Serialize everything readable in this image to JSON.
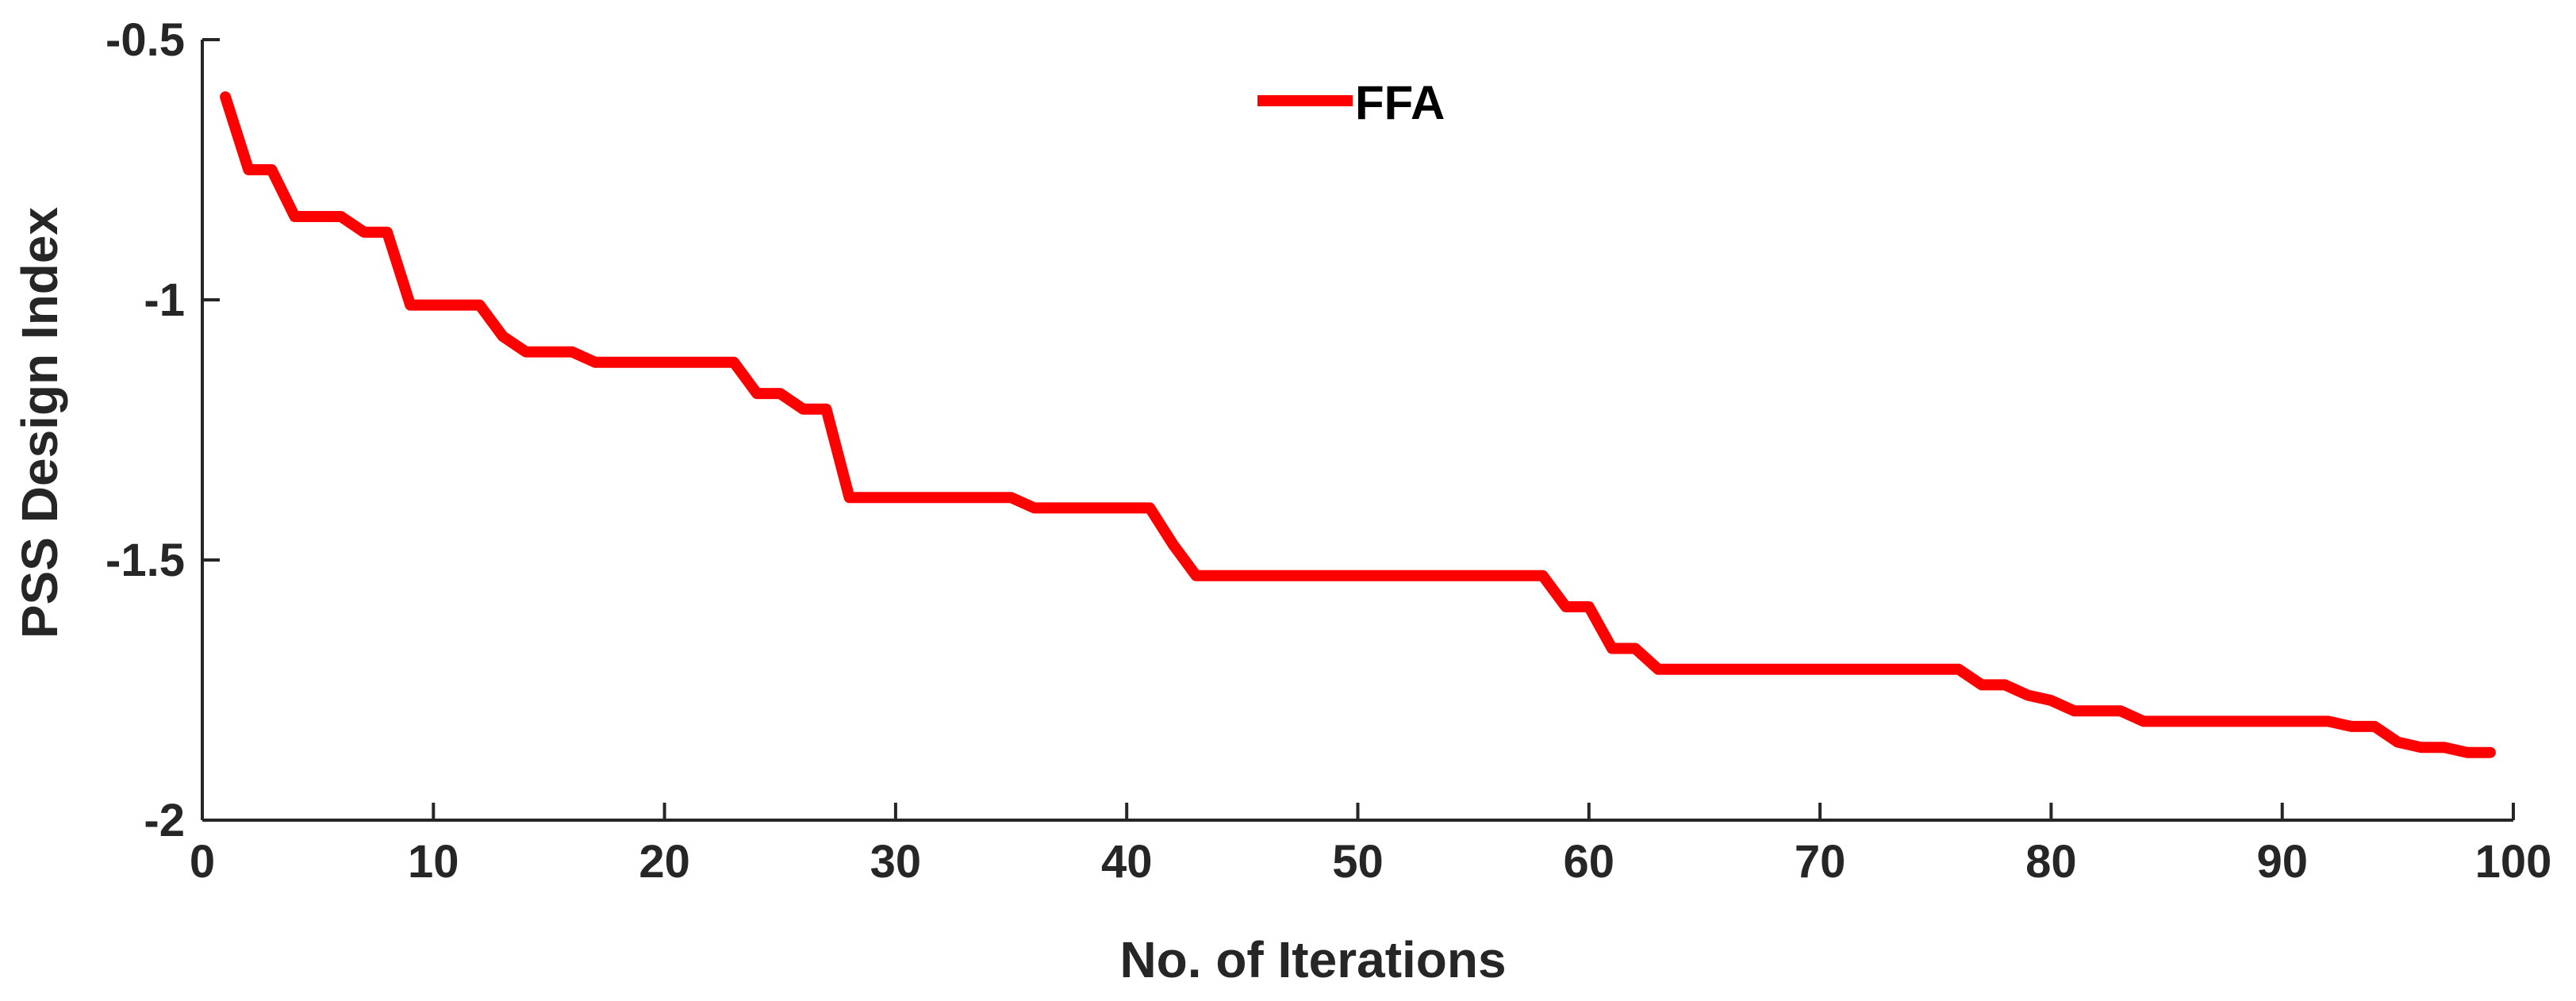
{
  "chart_data": {
    "type": "line",
    "title": "",
    "xlabel": "No. of Iterations",
    "ylabel": "PSS Design Index",
    "xlim": [
      0,
      100
    ],
    "ylim": [
      -2,
      -0.5
    ],
    "xticks": [
      0,
      10,
      20,
      30,
      40,
      50,
      60,
      70,
      80,
      90,
      100
    ],
    "yticks": [
      -2,
      -1.5,
      -1,
      -0.5
    ],
    "xtick_labels": [
      "0",
      "10",
      "20",
      "30",
      "40",
      "50",
      "60",
      "70",
      "80",
      "90",
      "100"
    ],
    "ytick_labels": [
      "-2",
      "-1.5",
      "-1",
      "-0.5"
    ],
    "grid": false,
    "legend_position": "top-center",
    "series": [
      {
        "name": "FFA",
        "color": "#ff0000",
        "x": [
          1,
          2,
          3,
          4,
          5,
          6,
          7,
          8,
          9,
          10,
          11,
          12,
          13,
          14,
          15,
          16,
          17,
          18,
          19,
          20,
          21,
          22,
          23,
          24,
          25,
          26,
          27,
          28,
          29,
          30,
          31,
          32,
          33,
          34,
          35,
          36,
          37,
          38,
          39,
          40,
          41,
          42,
          43,
          44,
          45,
          46,
          47,
          48,
          49,
          50,
          51,
          52,
          53,
          54,
          55,
          56,
          57,
          58,
          59,
          60,
          61,
          62,
          63,
          64,
          65,
          66,
          67,
          68,
          69,
          70,
          71,
          72,
          73,
          74,
          75,
          76,
          77,
          78,
          79,
          80,
          81,
          82,
          83,
          84,
          85,
          86,
          87,
          88,
          89,
          90,
          91,
          92,
          93,
          94,
          95,
          96,
          97,
          98,
          99
        ],
        "y": [
          -0.61,
          -0.75,
          -0.75,
          -0.84,
          -0.84,
          -0.84,
          -0.87,
          -0.87,
          -1.01,
          -1.01,
          -1.01,
          -1.01,
          -1.07,
          -1.1,
          -1.1,
          -1.1,
          -1.12,
          -1.12,
          -1.12,
          -1.12,
          -1.12,
          -1.12,
          -1.12,
          -1.18,
          -1.18,
          -1.21,
          -1.21,
          -1.38,
          -1.38,
          -1.38,
          -1.38,
          -1.38,
          -1.38,
          -1.38,
          -1.38,
          -1.4,
          -1.4,
          -1.4,
          -1.4,
          -1.4,
          -1.4,
          -1.47,
          -1.53,
          -1.53,
          -1.53,
          -1.53,
          -1.53,
          -1.53,
          -1.53,
          -1.53,
          -1.53,
          -1.53,
          -1.53,
          -1.53,
          -1.53,
          -1.53,
          -1.53,
          -1.53,
          -1.59,
          -1.59,
          -1.67,
          -1.67,
          -1.71,
          -1.71,
          -1.71,
          -1.71,
          -1.71,
          -1.71,
          -1.71,
          -1.71,
          -1.71,
          -1.71,
          -1.71,
          -1.71,
          -1.71,
          -1.71,
          -1.74,
          -1.74,
          -1.76,
          -1.77,
          -1.79,
          -1.79,
          -1.79,
          -1.81,
          -1.81,
          -1.81,
          -1.81,
          -1.81,
          -1.81,
          -1.81,
          -1.81,
          -1.81,
          -1.82,
          -1.82,
          -1.85,
          -1.86,
          -1.86,
          -1.87,
          -1.87
        ]
      }
    ]
  }
}
